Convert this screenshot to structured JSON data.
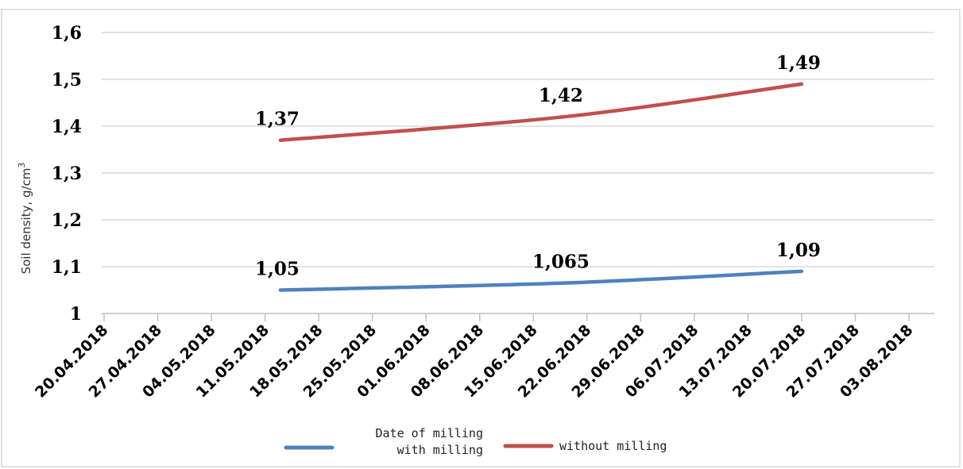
{
  "chart_data": {
    "type": "line",
    "title": "",
    "xlabel": "Date of milling",
    "ylabel": "Soil density, g/cm",
    "ylabel_superscript": "3",
    "x_ticks": [
      "20.04.2018",
      "27.04.2018",
      "04.05.2018",
      "11.05.2018",
      "18.05.2018",
      "25.05.2018",
      "01.06.2018",
      "08.06.2018",
      "15.06.2018",
      "22.06.2018",
      "29.06.2018",
      "06.07.2018",
      "13.07.2018",
      "20.07.2018",
      "27.07.2018",
      "03.08.2018"
    ],
    "y_ticks": [
      "1",
      "1,1",
      "1,2",
      "1,3",
      "1,4",
      "1,5",
      "1,6"
    ],
    "ylim": [
      1,
      1.6
    ],
    "grid": true,
    "legend_position": "bottom",
    "series": [
      {
        "name": "with milling",
        "color": "#4f81bd",
        "x": [
          "13.05.2018",
          "19.06.2018",
          "20.07.2018"
        ],
        "values": [
          1.05,
          1.065,
          1.09
        ],
        "labels": [
          "1,05",
          "1,065",
          "1,09"
        ]
      },
      {
        "name": "without milling",
        "color": "#c0504d",
        "x": [
          "13.05.2018",
          "19.06.2018",
          "20.07.2018"
        ],
        "values": [
          1.37,
          1.42,
          1.49
        ],
        "labels": [
          "1,37",
          "1,42",
          "1,49"
        ]
      }
    ]
  }
}
